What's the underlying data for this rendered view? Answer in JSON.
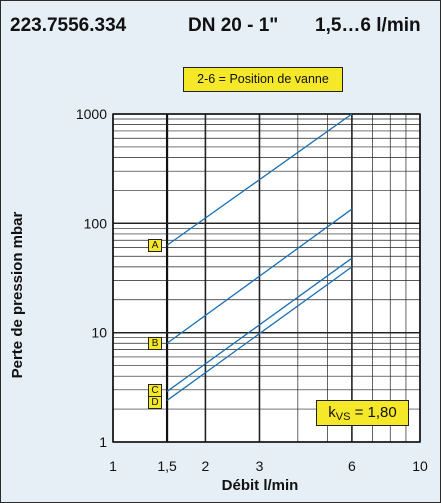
{
  "header": {
    "code": "223.7556.334",
    "dn": "DN 20 - 1\"",
    "flow": "1,5…6 l/min"
  },
  "legend": "2-6 = Position de vanne",
  "kvs": {
    "k": "k",
    "sub": "VS",
    "value": "= 1,80"
  },
  "colors": {
    "line": "#1a6fb5",
    "box": "#f5e829",
    "background": "#e6eef6"
  },
  "chart_data": {
    "type": "line",
    "xscale": "log",
    "yscale": "log",
    "xlabel": "Débit l/min",
    "ylabel": "Perte de pression mbar",
    "xlim": [
      1,
      10
    ],
    "ylim": [
      1,
      1000
    ],
    "xticks": [
      1,
      1.5,
      2,
      3,
      6,
      10
    ],
    "xticklabels": [
      "1",
      "1,5",
      "2",
      "3",
      "6",
      "10"
    ],
    "yticks": [
      1,
      10,
      100,
      1000
    ],
    "yticklabels": [
      "1",
      "10",
      "100",
      "1000"
    ],
    "grid": true,
    "series": [
      {
        "name": "A",
        "x": [
          1.5,
          6
        ],
        "y": [
          63,
          1000
        ]
      },
      {
        "name": "B",
        "x": [
          1.5,
          6
        ],
        "y": [
          8,
          135
        ]
      },
      {
        "name": "C",
        "x": [
          1.5,
          6
        ],
        "y": [
          2.9,
          48
        ]
      },
      {
        "name": "D",
        "x": [
          1.5,
          6
        ],
        "y": [
          2.4,
          40
        ]
      }
    ]
  }
}
